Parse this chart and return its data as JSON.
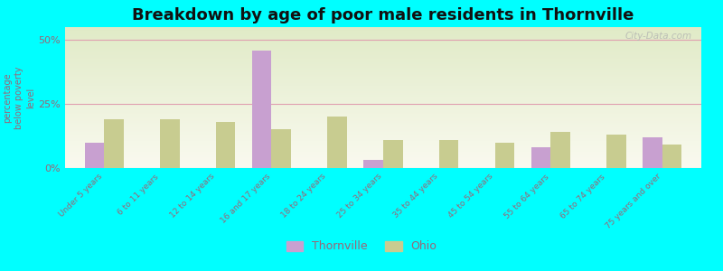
{
  "title": "Breakdown by age of poor male residents in Thornville",
  "ylabel": "percentage\nbelow poverty\nlevel",
  "categories": [
    "Under 5 years",
    "6 to 11 years",
    "12 to 14 years",
    "16 and 17 years",
    "18 to 24 years",
    "25 to 34 years",
    "35 to 44 years",
    "45 to 54 years",
    "55 to 64 years",
    "65 to 74 years",
    "75 years and over"
  ],
  "thornville": [
    10,
    0,
    0,
    46,
    0,
    3,
    0,
    0,
    8,
    0,
    12
  ],
  "ohio": [
    19,
    19,
    18,
    15,
    20,
    11,
    11,
    10,
    14,
    13,
    9
  ],
  "thornville_color": "#c8a0d0",
  "ohio_color": "#c8cc90",
  "background_color": "#00ffff",
  "ylim": [
    0,
    55
  ],
  "yticks": [
    0,
    25,
    50
  ],
  "ytick_labels": [
    "0%",
    "25%",
    "50%"
  ],
  "bar_width": 0.35,
  "title_fontsize": 13,
  "legend_labels": [
    "Thornville",
    "Ohio"
  ],
  "watermark": "City-Data.com",
  "tick_color": "#996677",
  "label_color": "#996677"
}
